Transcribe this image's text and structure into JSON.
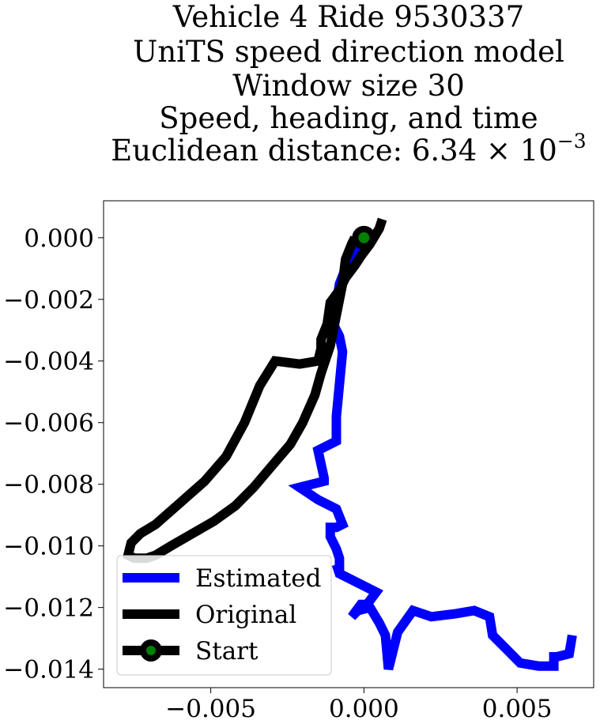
{
  "chart_data": {
    "type": "line",
    "title_lines": [
      "Vehicle 4 Ride 9530337",
      "UniTS speed direction model",
      "Window size 30",
      "Speed, heading, and time",
      "Euclidean distance: 6.34 × 10"
    ],
    "title_exponent": "−3",
    "xlabel": "",
    "ylabel": "",
    "xlim": [
      -0.0085,
      0.0075
    ],
    "ylim": [
      -0.0146,
      0.0012
    ],
    "x_ticks": [
      -0.005,
      0.0,
      0.005
    ],
    "x_tick_labels": [
      "−0.005",
      "0.000",
      "0.005"
    ],
    "y_ticks": [
      0.0,
      -0.002,
      -0.004,
      -0.006,
      -0.008,
      -0.01,
      -0.012,
      -0.014
    ],
    "y_tick_labels": [
      "0.000",
      "−0.002",
      "−0.004",
      "−0.006",
      "−0.008",
      "−0.010",
      "−0.012",
      "−0.014"
    ],
    "grid": false,
    "legend_position": "lower-left",
    "series": [
      {
        "name": "Estimated",
        "color": "#0000ff",
        "x": [
          0.0,
          -0.0003,
          -0.0006,
          -0.0008,
          -0.001,
          -0.0008,
          -0.0007,
          -0.0009,
          -0.0009,
          -0.0015,
          -0.0013,
          -0.0013,
          -0.0021,
          -0.0015,
          -0.0009,
          -0.0007,
          -0.0009,
          -0.0011,
          -0.0011,
          -0.0009,
          -0.0008,
          -0.0008,
          -0.0009,
          -0.0008,
          -0.0004,
          0.0004,
          0.0001,
          -0.0001,
          -0.0004,
          -0.0002,
          0.0002,
          0.0005,
          0.0007,
          0.0008,
          0.0011,
          0.0016,
          0.0022,
          0.003,
          0.0036,
          0.0041,
          0.0042,
          0.0047,
          0.0051,
          0.0057,
          0.0062,
          0.0062,
          0.0063,
          0.0067,
          0.0068
        ],
        "y": [
          0.0,
          -0.0005,
          -0.001,
          -0.0015,
          -0.0028,
          -0.0032,
          -0.0037,
          -0.0058,
          -0.0066,
          -0.0069,
          -0.0078,
          -0.0079,
          -0.0081,
          -0.0085,
          -0.0088,
          -0.0093,
          -0.0094,
          -0.0094,
          -0.0097,
          -0.0101,
          -0.0104,
          -0.0109,
          -0.0106,
          -0.0109,
          -0.0111,
          -0.0115,
          -0.0119,
          -0.0119,
          -0.0123,
          -0.0121,
          -0.012,
          -0.0125,
          -0.0129,
          -0.014,
          -0.0128,
          -0.0121,
          -0.0123,
          -0.0122,
          -0.0121,
          -0.0123,
          -0.0129,
          -0.0134,
          -0.0138,
          -0.0139,
          -0.0139,
          -0.0136,
          -0.0136,
          -0.0135,
          -0.0129
        ]
      },
      {
        "name": "Original",
        "color": "#000000",
        "x": [
          0.0006,
          0.0005,
          0.0002,
          -0.0001,
          -0.0003,
          -0.0006,
          -0.0008,
          -0.0011,
          -0.0012,
          -0.0014,
          -0.0014,
          -0.0015,
          -0.0021,
          -0.0029,
          -0.0034,
          -0.0039,
          -0.0045,
          -0.0052,
          -0.006,
          -0.0068,
          -0.0073,
          -0.0076,
          -0.0077,
          -0.0075,
          -0.0071,
          -0.0068,
          -0.0063,
          -0.0056,
          -0.0049,
          -0.0042,
          -0.0036,
          -0.003,
          -0.0024,
          -0.002,
          -0.0016,
          -0.0014,
          -0.0011,
          -0.0009,
          -0.0007,
          -0.0006,
          -0.0004,
          -0.0003
        ],
        "y": [
          0.0006,
          0.0003,
          -0.0002,
          -0.0006,
          -0.0009,
          -0.0013,
          -0.0017,
          -0.0021,
          -0.0028,
          -0.0033,
          -0.0036,
          -0.004,
          -0.0041,
          -0.004,
          -0.0048,
          -0.006,
          -0.0071,
          -0.0079,
          -0.0086,
          -0.0093,
          -0.0096,
          -0.0099,
          -0.0103,
          -0.0104,
          -0.0104,
          -0.0103,
          -0.01,
          -0.0096,
          -0.0092,
          -0.0087,
          -0.0081,
          -0.0074,
          -0.0067,
          -0.006,
          -0.0051,
          -0.0044,
          -0.0035,
          -0.0025,
          -0.0015,
          -0.0007,
          -0.0002,
          0.0
        ]
      }
    ],
    "start_marker": {
      "name": "Start",
      "x": 0.0,
      "y": 0.0,
      "color": "#008000",
      "edge_color": "#000000"
    },
    "legend": [
      {
        "label": "Estimated",
        "color": "#0000ff",
        "kind": "line"
      },
      {
        "label": "Original",
        "color": "#000000",
        "kind": "line"
      },
      {
        "label": "Start",
        "color": "#000000",
        "kind": "marker",
        "marker_color": "#008000"
      }
    ]
  }
}
